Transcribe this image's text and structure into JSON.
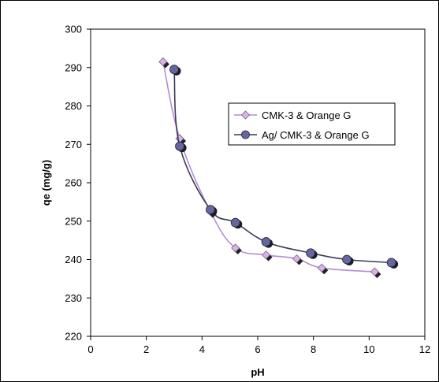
{
  "chart_data": {
    "type": "line",
    "title": "",
    "xlabel": "pH",
    "ylabel": "qe (mg/g)",
    "xlim": [
      0,
      12
    ],
    "ylim": [
      220,
      300
    ],
    "xticks": [
      "0",
      "2",
      "4",
      "6",
      "8",
      "10",
      "12"
    ],
    "yticks": [
      "220",
      "230",
      "240",
      "250",
      "260",
      "270",
      "280",
      "290",
      "300"
    ],
    "grid": false,
    "legend_position": "upper-right",
    "series": [
      {
        "name": "CMK-3 & Orange G",
        "marker": "diamond",
        "color": "#b58ad2",
        "marker_fill": "#d8b4e2",
        "x": [
          2.6,
          3.2,
          4.3,
          5.2,
          6.3,
          7.4,
          8.3,
          10.2
        ],
        "y": [
          291.5,
          271.5,
          252.5,
          243,
          241.2,
          240.2,
          237.8,
          236.8
        ]
      },
      {
        "name": "Ag/ CMK-3 & Orange G",
        "marker": "circle",
        "color": "#3a3a58",
        "marker_fill": "#6666a0",
        "x": [
          3.0,
          3.2,
          4.3,
          5.2,
          6.3,
          7.9,
          9.2,
          10.8
        ],
        "y": [
          289.5,
          269.5,
          253,
          249.6,
          244.6,
          241.7,
          240,
          239.2
        ]
      }
    ]
  }
}
